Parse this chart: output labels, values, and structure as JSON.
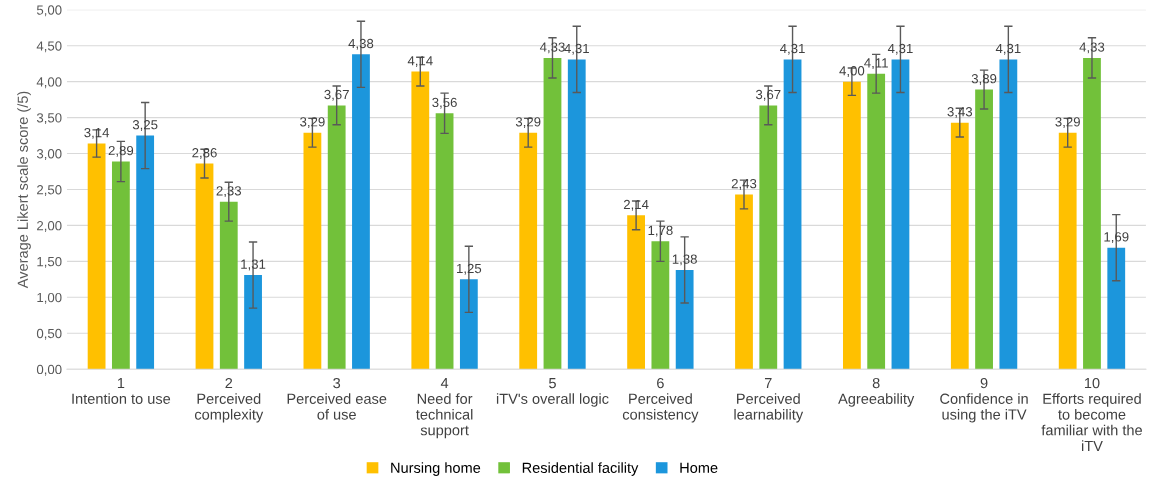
{
  "chart_data": {
    "type": "bar",
    "ylabel": "Average Likert scale score (/5)",
    "categories": [
      "1\nIntention to use",
      "2\nPerceived\ncomplexity",
      "3\nPerceived ease\nof use",
      "4\nNeed for\ntechnical\nsupport",
      "5\niTV's overall logic",
      "6\nPerceived\nconsistency",
      "7\nPerceived\nlearnability",
      "8\nAgreeability",
      "9\nConfidence in\nusing the iTV",
      "10\nEfforts required\nto become\nfamiliar with the\niTV"
    ],
    "series": [
      {
        "name": "Nursing home",
        "color": "#ffc000",
        "values": [
          3.14,
          2.86,
          3.29,
          4.14,
          3.29,
          2.14,
          2.43,
          4.0,
          3.43,
          3.29
        ],
        "errors": [
          0.19,
          0.2,
          0.2,
          0.2,
          0.2,
          0.2,
          0.2,
          0.19,
          0.2,
          0.2
        ],
        "value_labels": [
          "3,14",
          "2,86",
          "3,29",
          "4,14",
          "3,29",
          "2,14",
          "2,43",
          "4,00",
          "3,43",
          "3,29"
        ]
      },
      {
        "name": "Residential facility",
        "color": "#72c13a",
        "values": [
          2.89,
          2.33,
          3.67,
          3.56,
          4.33,
          1.78,
          3.67,
          4.11,
          3.89,
          4.33
        ],
        "errors": [
          0.28,
          0.27,
          0.27,
          0.28,
          0.28,
          0.28,
          0.27,
          0.27,
          0.27,
          0.28
        ],
        "value_labels": [
          "2,89",
          "2,33",
          "3,67",
          "3,56",
          "4,33",
          "1,78",
          "3,67",
          "4,11",
          "3,89",
          "4,33"
        ]
      },
      {
        "name": "Home",
        "color": "#1c96dc",
        "values": [
          3.25,
          1.31,
          4.38,
          1.25,
          4.31,
          1.38,
          4.31,
          4.31,
          4.31,
          1.69
        ],
        "errors": [
          0.46,
          0.46,
          0.46,
          0.46,
          0.46,
          0.46,
          0.46,
          0.46,
          0.46,
          0.46
        ],
        "value_labels": [
          "3,25",
          "1,31",
          "4,38",
          "1,25",
          "4,31",
          "1,38",
          "4,31",
          "4,31",
          "4,31",
          "1,69"
        ]
      }
    ],
    "ylim": [
      0,
      5
    ],
    "yticks": [
      {
        "value": 0,
        "label": "0,00"
      },
      {
        "value": 0.5,
        "label": "0,50"
      },
      {
        "value": 1,
        "label": "1,00"
      },
      {
        "value": 1.5,
        "label": "1,50"
      },
      {
        "value": 2,
        "label": "2,00"
      },
      {
        "value": 2.5,
        "label": "2,50"
      },
      {
        "value": 3,
        "label": "3,00"
      },
      {
        "value": 3.5,
        "label": "3,50"
      },
      {
        "value": 4,
        "label": "4,00"
      },
      {
        "value": 4.5,
        "label": "4,50"
      },
      {
        "value": 5,
        "label": "5,00"
      }
    ],
    "grid": "y",
    "legend": "bottom"
  }
}
